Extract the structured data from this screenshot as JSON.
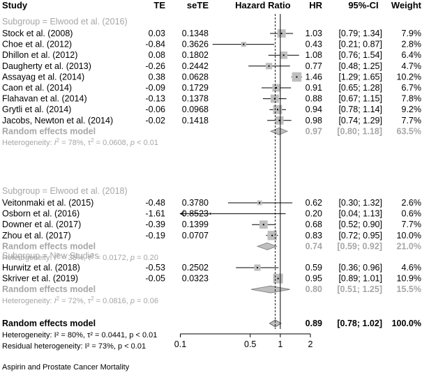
{
  "chart_data": {
    "type": "forest",
    "header": {
      "study": "Study",
      "te": "TE",
      "sete": "seTE",
      "hr_axis": "Hazard Ratio",
      "hr": "HR",
      "ci": "95%-CI",
      "weight": "Weight"
    },
    "x_axis": {
      "scale": "log",
      "ticks": [
        0.1,
        0.5,
        1,
        2
      ],
      "tick_labels": [
        "0.1",
        "0.5",
        "1",
        "2"
      ],
      "xlim": [
        0.1,
        2
      ],
      "reference_line": 1,
      "overall_dashed_line": 0.89
    },
    "subgroups": [
      {
        "title": "Subgroup = Elwood et al. (2016)",
        "studies": [
          {
            "study": "Stock et al. (2008)",
            "te": "0.03",
            "sete": "0.1348",
            "hr": 1.03,
            "lo": 0.79,
            "hi": 1.34,
            "hr_text": "1.03",
            "ci_text": "[0.79; 1.34]",
            "weight": "7.9%",
            "w": 7.9
          },
          {
            "study": "Choe et al. (2012)",
            "te": "-0.84",
            "sete": "0.3626",
            "hr": 0.43,
            "lo": 0.21,
            "hi": 0.87,
            "hr_text": "0.43",
            "ci_text": "[0.21; 0.87]",
            "weight": "2.8%",
            "w": 2.8
          },
          {
            "study": "Dhillon et al. (2012)",
            "te": "0.08",
            "sete": "0.1802",
            "hr": 1.08,
            "lo": 0.76,
            "hi": 1.54,
            "hr_text": "1.08",
            "ci_text": "[0.76; 1.54]",
            "weight": "6.4%",
            "w": 6.4
          },
          {
            "study": "Daugherty et al. (2013)",
            "te": "-0.26",
            "sete": "0.2442",
            "hr": 0.77,
            "lo": 0.48,
            "hi": 1.25,
            "hr_text": "0.77",
            "ci_text": "[0.48; 1.25]",
            "weight": "4.7%",
            "w": 4.7
          },
          {
            "study": "Assayag et al. (2014)",
            "te": "0.38",
            "sete": "0.0628",
            "hr": 1.46,
            "lo": 1.29,
            "hi": 1.65,
            "hr_text": "1.46",
            "ci_text": "[1.29; 1.65]",
            "weight": "10.2%",
            "w": 10.2
          },
          {
            "study": "Caon et al. (2014)",
            "te": "-0.09",
            "sete": "0.1729",
            "hr": 0.91,
            "lo": 0.65,
            "hi": 1.28,
            "hr_text": "0.91",
            "ci_text": "[0.65; 1.28]",
            "weight": "6.7%",
            "w": 6.7
          },
          {
            "study": "Flahavan et al. (2014)",
            "te": "-0.13",
            "sete": "0.1378",
            "hr": 0.88,
            "lo": 0.67,
            "hi": 1.15,
            "hr_text": "0.88",
            "ci_text": "[0.67; 1.15]",
            "weight": "7.8%",
            "w": 7.8
          },
          {
            "study": "Grytli et al. (2014)",
            "te": "-0.06",
            "sete": "0.0968",
            "hr": 0.94,
            "lo": 0.78,
            "hi": 1.14,
            "hr_text": "0.94",
            "ci_text": "[0.78; 1.14]",
            "weight": "9.2%",
            "w": 9.2
          },
          {
            "study": "Jacobs, Newton et al. (2014)",
            "te": "-0.02",
            "sete": "0.1418",
            "hr": 0.98,
            "lo": 0.74,
            "hi": 1.29,
            "hr_text": "0.98",
            "ci_text": "[0.74; 1.29]",
            "weight": "7.7%",
            "w": 7.7
          }
        ],
        "re": {
          "label": "Random effects model",
          "hr": 0.97,
          "lo": 0.8,
          "hi": 1.18,
          "hr_text": "0.97",
          "ci_text": "[0.80; 1.18]",
          "weight": "63.5%"
        },
        "het": {
          "prefix": "Heterogeneity: ",
          "i2": "I",
          "i2_rest": "2",
          "eq": " = 78%, ",
          "tau": "τ",
          "tau_sup": "2",
          "tau_rest": " = 0.0608, ",
          "p": "p",
          "p_rest": " < 0.01"
        }
      },
      {
        "title": "Subgroup = Elwood et al. (2018)",
        "studies": [
          {
            "study": "Veitonmaki et al. (2015)",
            "te": "-0.48",
            "sete": "0.3780",
            "hr": 0.62,
            "lo": 0.3,
            "hi": 1.32,
            "hr_text": "0.62",
            "ci_text": "[0.30; 1.32]",
            "weight": "2.6%",
            "w": 2.6
          },
          {
            "study": "Osborn et al. (2016)",
            "te": "-1.61",
            "sete": "0.8523",
            "hr": 0.2,
            "lo": 0.04,
            "hi": 1.13,
            "hr_text": "0.20",
            "ci_text": "[0.04; 1.13]",
            "weight": "0.6%",
            "w": 0.6
          },
          {
            "study": "Downer et al. (2017)",
            "te": "-0.39",
            "sete": "0.1399",
            "hr": 0.68,
            "lo": 0.52,
            "hi": 0.9,
            "hr_text": "0.68",
            "ci_text": "[0.52; 0.90]",
            "weight": "7.7%",
            "w": 7.7
          },
          {
            "study": "Zhou et al. (2017)",
            "te": "-0.19",
            "sete": "0.0707",
            "hr": 0.83,
            "lo": 0.72,
            "hi": 0.95,
            "hr_text": "0.83",
            "ci_text": "[0.72; 0.95]",
            "weight": "10.0%",
            "w": 10.0
          }
        ],
        "re": {
          "label": "Random effects model",
          "hr": 0.74,
          "lo": 0.59,
          "hi": 0.92,
          "hr_text": "0.74",
          "ci_text": "[0.59; 0.92]",
          "weight": "21.0%"
        },
        "het": {
          "prefix": "Heterogeneity: ",
          "i2": "I",
          "i2_rest": "2",
          "eq": " = 35%, ",
          "tau": "τ",
          "tau_sup": "2",
          "tau_rest": " = 0.0172, ",
          "p": "p",
          "p_rest": " = 0.20"
        }
      },
      {
        "title": "Subgroup = New Studies",
        "studies": [
          {
            "study": "Hurwitz et al. (2018)",
            "te": "-0.53",
            "sete": "0.2502",
            "hr": 0.59,
            "lo": 0.36,
            "hi": 0.96,
            "hr_text": "0.59",
            "ci_text": "[0.36; 0.96]",
            "weight": "4.6%",
            "w": 4.6
          },
          {
            "study": "Skriver et al. (2019)",
            "te": "-0.05",
            "sete": "0.0323",
            "hr": 0.95,
            "lo": 0.89,
            "hi": 1.01,
            "hr_text": "0.95",
            "ci_text": "[0.89; 1.01]",
            "weight": "10.9%",
            "w": 10.9
          }
        ],
        "re": {
          "label": "Random effects model",
          "hr": 0.8,
          "lo": 0.51,
          "hi": 1.25,
          "hr_text": "0.80",
          "ci_text": "[0.51; 1.25]",
          "weight": "15.5%"
        },
        "het": {
          "prefix": "Heterogeneity: ",
          "i2": "I",
          "i2_rest": "2",
          "eq": " = 72%, ",
          "tau": "τ",
          "tau_sup": "2",
          "tau_rest": " = 0.0816, ",
          "p": "p",
          "p_rest": " = 0.06"
        }
      }
    ],
    "overall": {
      "label": "Random effects model",
      "hr": 0.89,
      "lo": 0.78,
      "hi": 1.02,
      "hr_text": "0.89",
      "ci_text": "[0.78; 1.02]",
      "weight": "100.0%"
    },
    "overall_het": "Heterogeneity: I² = 80%, τ² = 0.0441, p < 0.01",
    "residual_het": "Residual heterogeneity: I² = 73%, p < 0.01",
    "caption": "Aspirin and Prostate Cancer Mortality",
    "colors": {
      "box": "#bfbfbf",
      "diamond": "#bfbfbf",
      "grey_text": "#a6a6a6",
      "line": "#000000"
    }
  }
}
